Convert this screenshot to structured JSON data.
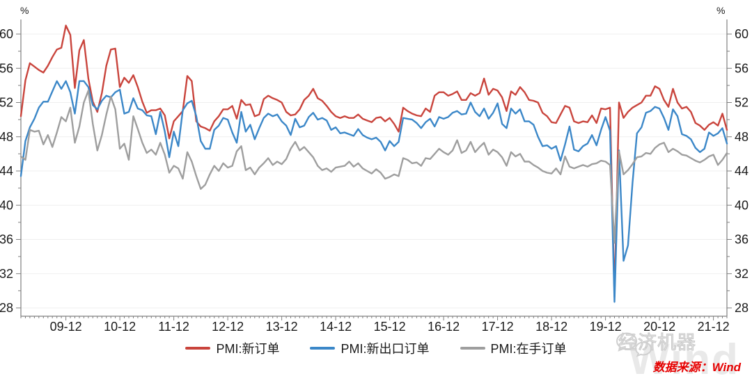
{
  "chart": {
    "y_unit": "%",
    "colors": {
      "axis": "#7f7f7f",
      "grid": "#efefef",
      "tick_label": "#1a1a1a",
      "new_orders_red": "#c9443c",
      "export_orders_blue": "#3b87c8",
      "backlog_gray": "#9e9e9e"
    }
  },
  "chart_data": {
    "type": "line",
    "title": "",
    "xlabel": "",
    "ylabel": "%",
    "x_start": "2009-02",
    "x_frequency": "monthly",
    "ylim": [
      27,
      61.8
    ],
    "grid": "horizontal-only",
    "legend_position": "bottom-center",
    "y_ticks": [
      28,
      32,
      36,
      40,
      44,
      48,
      52,
      56,
      60
    ],
    "x_tick_labels": [
      "09-12",
      "10-12",
      "11-12",
      "12-12",
      "13-12",
      "14-12",
      "15-12",
      "16-12",
      "17-12",
      "18-12",
      "19-12",
      "20-12",
      "21-12"
    ],
    "series": [
      {
        "name": "PMI:新订单",
        "color": "#c9443c",
        "values": [
          50.4,
          54.6,
          56.6,
          56.2,
          55.8,
          55.5,
          56.3,
          57.3,
          58.2,
          58.4,
          61.0,
          59.9,
          53.7,
          58.1,
          59.3,
          54.8,
          52.1,
          50.9,
          53.1,
          56.3,
          58.2,
          58.3,
          53.8,
          54.9,
          54.3,
          55.2,
          53.8,
          52.1,
          50.8,
          51.1,
          51.1,
          51.3,
          50.5,
          47.8,
          49.8,
          50.4,
          51.0,
          55.1,
          54.5,
          49.8,
          49.2,
          49.0,
          48.7,
          49.8,
          50.4,
          51.2,
          51.2,
          51.6,
          50.1,
          52.3,
          51.7,
          51.8,
          50.4,
          50.6,
          52.4,
          52.8,
          52.5,
          52.3,
          52.0,
          50.9,
          50.5,
          50.6,
          51.2,
          52.3,
          52.8,
          53.6,
          52.5,
          52.2,
          51.6,
          50.9,
          50.4,
          50.2,
          50.4,
          50.2,
          50.2,
          50.6,
          50.1,
          49.9,
          49.7,
          50.2,
          50.3,
          49.8,
          50.2,
          49.5,
          48.6,
          51.4,
          51.0,
          50.7,
          50.5,
          50.4,
          51.3,
          50.9,
          52.8,
          53.2,
          53.2,
          52.8,
          53.0,
          53.3,
          52.3,
          52.3,
          53.1,
          52.8,
          53.1,
          54.8,
          52.9,
          53.6,
          53.4,
          52.6,
          51.0,
          53.3,
          52.9,
          53.8,
          53.2,
          52.3,
          52.2,
          52.0,
          50.8,
          50.4,
          49.7,
          49.6,
          50.6,
          51.6,
          51.4,
          49.8,
          49.6,
          49.8,
          49.7,
          50.5,
          49.6,
          51.3,
          51.2,
          51.4,
          29.3,
          52.0,
          50.2,
          50.9,
          51.4,
          51.7,
          52.0,
          52.8,
          52.8,
          53.9,
          53.6,
          52.3,
          51.5,
          53.6,
          52.0,
          51.3,
          51.5,
          50.9,
          49.6,
          49.3,
          48.8,
          49.4,
          49.7,
          49.3,
          50.7,
          48.8
        ]
      },
      {
        "name": "PMI:新出口订单",
        "color": "#3b87c8",
        "values": [
          43.4,
          47.5,
          49.1,
          50.1,
          51.4,
          52.1,
          52.1,
          53.3,
          54.5,
          53.6,
          54.5,
          53.2,
          50.7,
          54.5,
          54.5,
          53.8,
          51.7,
          51.2,
          52.2,
          52.8,
          52.6,
          53.2,
          53.5,
          50.7,
          50.9,
          52.5,
          51.3,
          51.1,
          50.5,
          50.4,
          48.3,
          50.9,
          48.6,
          45.6,
          48.6,
          46.9,
          51.1,
          51.9,
          52.2,
          50.4,
          47.5,
          46.6,
          46.6,
          48.8,
          49.3,
          50.2,
          50.0,
          48.5,
          47.3,
          50.9,
          48.6,
          49.4,
          47.7,
          49.0,
          50.2,
          50.7,
          50.4,
          50.6,
          49.8,
          49.3,
          48.2,
          50.1,
          49.1,
          49.3,
          50.3,
          50.8,
          50.0,
          50.2,
          49.9,
          48.8,
          49.1,
          48.4,
          48.5,
          48.3,
          48.1,
          48.9,
          48.2,
          47.9,
          47.7,
          47.9,
          47.4,
          46.4,
          47.5,
          46.9,
          47.4,
          50.2,
          50.1,
          50.0,
          49.6,
          49.0,
          49.7,
          50.1,
          49.2,
          50.3,
          50.1,
          50.3,
          50.8,
          51.0,
          50.6,
          50.7,
          52.0,
          50.9,
          50.4,
          51.3,
          50.1,
          50.8,
          51.9,
          49.5,
          49.0,
          51.3,
          50.7,
          51.2,
          49.8,
          49.8,
          49.4,
          48.0,
          46.9,
          47.0,
          46.6,
          46.9,
          45.2,
          47.1,
          49.2,
          46.5,
          46.3,
          46.9,
          47.2,
          48.2,
          47.0,
          48.8,
          50.3,
          48.7,
          28.7,
          46.4,
          33.5,
          35.3,
          42.6,
          48.4,
          49.1,
          50.8,
          51.0,
          51.5,
          51.3,
          50.2,
          48.8,
          51.2,
          50.4,
          48.3,
          48.1,
          47.7,
          46.7,
          46.2,
          46.6,
          48.5,
          48.1,
          48.4,
          49.0,
          47.2
        ]
      },
      {
        "name": "PMI:在手订单",
        "color": "#9e9e9e",
        "values": [
          45.7,
          45.3,
          48.8,
          48.6,
          48.7,
          47.1,
          48.2,
          46.8,
          48.5,
          50.3,
          49.8,
          51.4,
          47.3,
          49.2,
          52.0,
          53.4,
          49.5,
          46.4,
          48.2,
          50.6,
          52.7,
          51.2,
          46.6,
          47.2,
          45.3,
          50.4,
          48.9,
          47.3,
          46.1,
          46.5,
          45.9,
          47.3,
          45.9,
          43.8,
          44.6,
          44.3,
          43.1,
          46.2,
          45.1,
          43.4,
          41.9,
          42.4,
          43.6,
          44.6,
          44.0,
          44.9,
          44.4,
          44.6,
          46.3,
          46.9,
          44.1,
          44.4,
          43.6,
          44.4,
          44.9,
          45.5,
          44.7,
          45.1,
          44.8,
          45.4,
          46.6,
          47.4,
          46.4,
          46.8,
          46.2,
          45.6,
          44.6,
          44.1,
          44.3,
          43.9,
          44.4,
          44.5,
          44.6,
          45.1,
          44.5,
          44.9,
          44.3,
          44.0,
          43.7,
          44.2,
          43.8,
          43.1,
          43.3,
          43.6,
          43.4,
          45.5,
          45.3,
          44.9,
          45.0,
          44.6,
          45.5,
          45.4,
          46.0,
          46.6,
          46.2,
          45.9,
          46.4,
          47.6,
          46.1,
          46.4,
          47.4,
          46.2,
          46.8,
          47.3,
          45.9,
          46.5,
          46.2,
          45.6,
          44.6,
          46.2,
          45.7,
          46.0,
          45.1,
          45.1,
          44.7,
          44.4,
          44.0,
          43.8,
          43.7,
          44.3,
          43.6,
          45.7,
          44.5,
          44.3,
          44.5,
          44.7,
          44.5,
          44.8,
          44.9,
          45.2,
          45.1,
          44.7,
          35.6,
          46.3,
          43.6,
          44.1,
          44.8,
          45.6,
          45.7,
          46.1,
          46.0,
          46.7,
          47.1,
          47.3,
          46.2,
          46.6,
          46.3,
          45.9,
          45.8,
          45.5,
          45.2,
          45.0,
          45.3,
          45.7,
          45.9,
          44.7,
          45.3,
          46.1
        ]
      }
    ]
  },
  "watermarks": {
    "brand": "经济机器",
    "wind": "Wind"
  },
  "footer": {
    "source": "数据来源：Wind"
  }
}
